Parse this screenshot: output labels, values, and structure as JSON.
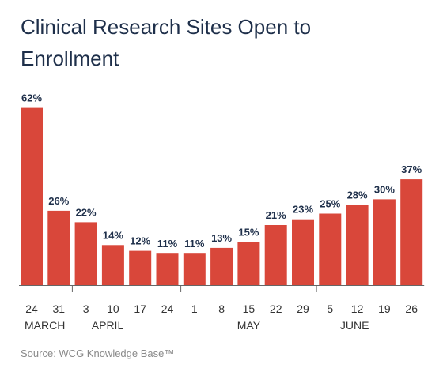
{
  "title": "Clinical Research Sites Open to Enrollment",
  "source": "Source: WCG Knowledge Base™",
  "colors": {
    "bar": "#d9473a",
    "title": "#1e2f4a",
    "text": "#333333",
    "source": "#8a8a8a"
  },
  "chart_data": {
    "type": "bar",
    "title": "Clinical Research Sites Open to Enrollment",
    "xlabel": "",
    "ylabel": "",
    "grid": false,
    "legend": "none",
    "ylim": [
      0,
      65
    ],
    "categories": [
      "24",
      "31",
      "3",
      "10",
      "17",
      "24",
      "1",
      "8",
      "15",
      "22",
      "29",
      "5",
      "12",
      "19",
      "26"
    ],
    "values": [
      62,
      26,
      22,
      14,
      12,
      11,
      11,
      13,
      15,
      21,
      23,
      25,
      28,
      30,
      37
    ],
    "value_labels": [
      "62%",
      "26%",
      "22%",
      "14%",
      "12%",
      "11%",
      "11%",
      "13%",
      "15%",
      "21%",
      "23%",
      "25%",
      "28%",
      "30%",
      "37%"
    ],
    "months": [
      {
        "label": "MARCH",
        "start_index": 0
      },
      {
        "label": "APRIL",
        "start_index": 2
      },
      {
        "label": "MAY",
        "start_index": 6
      },
      {
        "label": "JUNE",
        "start_index": 11
      }
    ]
  }
}
